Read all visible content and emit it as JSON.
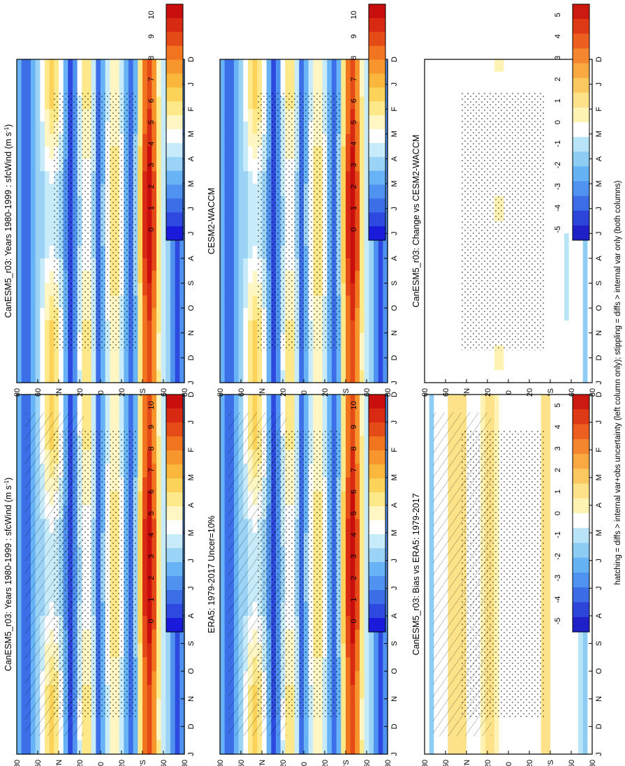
{
  "figure_caption": "hatching = diffs > internal var+obs uncertainty (left column only); stippling = diffs > internal var only (both columns)",
  "colors": {
    "full": [
      "#1a1adb",
      "#2e49e0",
      "#3c6ee8",
      "#4f92f0",
      "#67b3f5",
      "#9ad3f5",
      "#c8ebfa",
      "#ffffff",
      "#fff6c4",
      "#fde98a",
      "#fcd258",
      "#fbb63c",
      "#f7962c",
      "#f1741f",
      "#e54b17",
      "#d82a12",
      "#c90e0e"
    ],
    "diff": [
      "#2020c8",
      "#2d45d9",
      "#3c6ce6",
      "#4f92ef",
      "#65b2f4",
      "#8dcdf3",
      "#b9e4f8",
      "#ffffff",
      "#fff3b4",
      "#fde28a",
      "#fbc85f",
      "#f9a842",
      "#f4862f",
      "#ec5f21",
      "#dd3a15",
      "#cc1a10"
    ]
  },
  "chart_data": [
    {
      "id": "p1",
      "type": "heatmap",
      "title": "CanESM5_r03: Years 1980-1999 : sfcWind (m s",
      "title_unit_sup": "-1",
      "title_close": ")",
      "xlabel": "",
      "ylabel": "",
      "x_categories": [
        "D",
        "J",
        "F",
        "M",
        "A",
        "M",
        "J",
        "J",
        "A",
        "S",
        "O",
        "N",
        "D",
        "J"
      ],
      "yticks": [
        "80",
        "60",
        "°N",
        "20",
        "0",
        "20",
        "°S",
        "60",
        "80"
      ],
      "ylim": [
        -90,
        90
      ],
      "colorbar": {
        "labels": [
          "0",
          "1",
          "2",
          "3",
          "4",
          "5",
          "6",
          "7",
          "8",
          "9",
          "10"
        ],
        "range": [
          0,
          10
        ]
      },
      "hatching": true,
      "stippling": true
    },
    {
      "id": "p2",
      "type": "heatmap",
      "title": "CanESM5_r03: Years 1980-1999 : sfcWind (m s",
      "title_unit_sup": "-1",
      "title_close": ")",
      "xlabel": "",
      "ylabel": "",
      "x_categories": [
        "D",
        "J",
        "F",
        "M",
        "A",
        "M",
        "J",
        "J",
        "A",
        "S",
        "O",
        "N",
        "D",
        "J"
      ],
      "yticks": [
        "80",
        "60",
        "°N",
        "20",
        "0",
        "20",
        "°S",
        "60",
        "80"
      ],
      "ylim": [
        -90,
        90
      ],
      "colorbar": {
        "labels": [
          "0",
          "1",
          "2",
          "3",
          "4",
          "5",
          "6",
          "7",
          "8",
          "9",
          "10"
        ],
        "range": [
          0,
          10
        ]
      },
      "hatching": false,
      "stippling": true
    },
    {
      "id": "p3",
      "type": "heatmap",
      "title": "ERA5: 1979-2017 Uncer=10%",
      "xlabel": "",
      "ylabel": "",
      "x_categories": [
        "D",
        "J",
        "F",
        "M",
        "A",
        "M",
        "J",
        "J",
        "A",
        "S",
        "O",
        "N",
        "D",
        "J"
      ],
      "yticks": [
        "80",
        "60",
        "°N",
        "20",
        "0",
        "20",
        "°S",
        "60",
        "80"
      ],
      "ylim": [
        -90,
        90
      ],
      "colorbar": {
        "labels": [
          "0",
          "1",
          "2",
          "3",
          "4",
          "5",
          "6",
          "7",
          "8",
          "9",
          "10"
        ],
        "range": [
          0,
          10
        ]
      },
      "hatching": true,
      "stippling": true
    },
    {
      "id": "p4",
      "type": "heatmap",
      "title": "CESM2-WACCM",
      "xlabel": "",
      "ylabel": "",
      "x_categories": [
        "D",
        "J",
        "F",
        "M",
        "A",
        "M",
        "J",
        "J",
        "A",
        "S",
        "O",
        "N",
        "D",
        "J"
      ],
      "yticks": [
        "80",
        "60",
        "°N",
        "20",
        "0",
        "20",
        "°S",
        "60",
        "80"
      ],
      "ylim": [
        -90,
        90
      ],
      "colorbar": {
        "labels": [
          "0",
          "1",
          "2",
          "3",
          "4",
          "5",
          "6",
          "7",
          "8",
          "9",
          "10"
        ],
        "range": [
          0,
          10
        ]
      },
      "hatching": false,
      "stippling": true
    },
    {
      "id": "p5",
      "type": "heatmap",
      "title": "CanESM5_r03: Bias vs ERA5: 1979-2017",
      "xlabel": "",
      "ylabel": "",
      "x_categories": [
        "D",
        "J",
        "F",
        "M",
        "A",
        "M",
        "J",
        "J",
        "A",
        "S",
        "O",
        "N",
        "D",
        "J"
      ],
      "yticks": [
        "80",
        "60",
        "°N",
        "20",
        "0",
        "20",
        "°S",
        "60",
        "80"
      ],
      "ylim": [
        -90,
        90
      ],
      "colorbar": {
        "labels": [
          "-5",
          "-4",
          "-3",
          "-2",
          "-1",
          "0",
          "1",
          "2",
          "3",
          "4",
          "5"
        ],
        "range": [
          -5,
          5
        ]
      },
      "hatching": true,
      "stippling": true
    },
    {
      "id": "p6",
      "type": "heatmap",
      "title": "CanESM5_r03: Change vs CESM2-WACCM",
      "xlabel": "",
      "ylabel": "",
      "x_categories": [
        "D",
        "J",
        "F",
        "M",
        "A",
        "M",
        "J",
        "J",
        "A",
        "S",
        "O",
        "N",
        "D",
        "J"
      ],
      "yticks": [
        "80",
        "60",
        "°N",
        "20",
        "0",
        "20",
        "°S",
        "60",
        "80"
      ],
      "ylim": [
        -90,
        90
      ],
      "colorbar": {
        "labels": [
          "-5",
          "-4",
          "-3",
          "-2",
          "-1",
          "0",
          "1",
          "2",
          "3",
          "4",
          "5"
        ],
        "range": [
          -5,
          5
        ]
      },
      "hatching": false,
      "stippling": true
    }
  ]
}
